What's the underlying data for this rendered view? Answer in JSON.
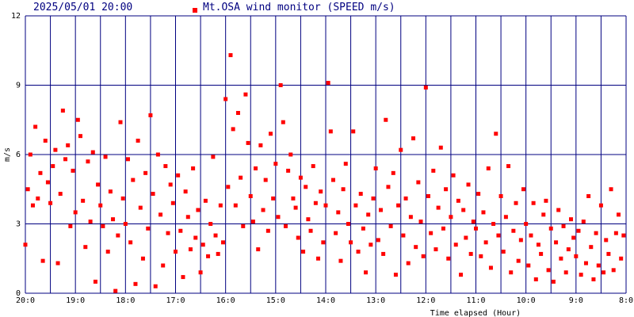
{
  "chart_data": {
    "type": "scatter",
    "title": "2025/05/01 20:00",
    "xlabel": "Time elapsed (Hour)",
    "ylabel": "m/s",
    "xlim": [
      0,
      12
    ],
    "ylim": [
      0,
      12
    ],
    "xticks": [
      {
        "value": 0,
        "label": "20:0"
      },
      {
        "value": 1,
        "label": "19:0"
      },
      {
        "value": 2,
        "label": "18:0"
      },
      {
        "value": 3,
        "label": "17:0"
      },
      {
        "value": 4,
        "label": "16:0"
      },
      {
        "value": 5,
        "label": "15:0"
      },
      {
        "value": 6,
        "label": "14:0"
      },
      {
        "value": 7,
        "label": "13:0"
      },
      {
        "value": 8,
        "label": "12:0"
      },
      {
        "value": 9,
        "label": "11:0"
      },
      {
        "value": 10,
        "label": "10:0"
      },
      {
        "value": 11,
        "label": "9:0"
      },
      {
        "value": 12,
        "label": "8:0"
      }
    ],
    "xminor": [
      0.5,
      1.5,
      2.5,
      3.5,
      4.5,
      5.5,
      6.5,
      7.5,
      8.5,
      9.5,
      10.5,
      11.5
    ],
    "yticks": [
      0,
      3,
      6,
      9,
      12
    ],
    "grid": true,
    "grid_color": "#000080",
    "series": [
      {
        "name": "Mt.OSA wind monitor (SPEED m/s)",
        "color": "#ff0000",
        "x": [
          0,
          0.05,
          0.1,
          0.15,
          0.2,
          0.25,
          0.3,
          0.35,
          0.4,
          0.45,
          0.5,
          0.55,
          0.6,
          0.65,
          0.7,
          0.75,
          0.8,
          0.85,
          0.9,
          0.95,
          1,
          1.05,
          1.1,
          1.15,
          1.2,
          1.25,
          1.3,
          1.35,
          1.4,
          1.45,
          1.5,
          1.55,
          1.6,
          1.65,
          1.7,
          1.75,
          1.8,
          1.85,
          1.9,
          1.95,
          2,
          2.05,
          2.1,
          2.15,
          2.2,
          2.25,
          2.3,
          2.35,
          2.4,
          2.45,
          2.5,
          2.55,
          2.6,
          2.65,
          2.7,
          2.75,
          2.8,
          2.85,
          2.9,
          2.95,
          3,
          3.05,
          3.1,
          3.15,
          3.2,
          3.25,
          3.3,
          3.35,
          3.4,
          3.45,
          3.5,
          3.55,
          3.6,
          3.65,
          3.7,
          3.75,
          3.8,
          3.85,
          3.9,
          3.95,
          4,
          4.05,
          4.1,
          4.15,
          4.2,
          4.25,
          4.3,
          4.35,
          4.4,
          4.45,
          4.5,
          4.55,
          4.6,
          4.65,
          4.7,
          4.75,
          4.8,
          4.85,
          4.9,
          4.95,
          5,
          5.05,
          5.1,
          5.15,
          5.2,
          5.25,
          5.3,
          5.35,
          5.4,
          5.45,
          5.5,
          5.55,
          5.6,
          5.65,
          5.7,
          5.75,
          5.8,
          5.85,
          5.9,
          5.95,
          6,
          6.05,
          6.1,
          6.15,
          6.2,
          6.25,
          6.3,
          6.35,
          6.4,
          6.45,
          6.5,
          6.55,
          6.6,
          6.65,
          6.7,
          6.75,
          6.8,
          6.85,
          6.9,
          6.95,
          7,
          7.05,
          7.1,
          7.15,
          7.2,
          7.25,
          7.3,
          7.35,
          7.4,
          7.45,
          7.5,
          7.55,
          7.6,
          7.65,
          7.7,
          7.75,
          7.8,
          7.85,
          7.9,
          7.95,
          8,
          8.05,
          8.1,
          8.15,
          8.2,
          8.25,
          8.3,
          8.35,
          8.4,
          8.45,
          8.5,
          8.55,
          8.6,
          8.65,
          8.7,
          8.75,
          8.8,
          8.85,
          8.9,
          8.95,
          9,
          9.05,
          9.1,
          9.15,
          9.2,
          9.25,
          9.3,
          9.35,
          9.4,
          9.45,
          9.5,
          9.55,
          9.6,
          9.65,
          9.7,
          9.75,
          9.8,
          9.85,
          9.9,
          9.95,
          10,
          10.05,
          10.1,
          10.15,
          10.2,
          10.25,
          10.3,
          10.35,
          10.4,
          10.45,
          10.5,
          10.55,
          10.6,
          10.65,
          10.7,
          10.75,
          10.8,
          10.85,
          10.9,
          10.95,
          11,
          11.05,
          11.1,
          11.15,
          11.2,
          11.25,
          11.3,
          11.35,
          11.4,
          11.45,
          11.5,
          11.55,
          11.6,
          11.65,
          11.7,
          11.75,
          11.8,
          11.85,
          11.9,
          11.95
        ],
        "values": [
          2.1,
          4.5,
          6.0,
          3.8,
          7.2,
          4.1,
          5.2,
          1.4,
          6.6,
          4.8,
          3.9,
          5.5,
          6.2,
          1.3,
          4.3,
          7.9,
          5.8,
          6.4,
          2.9,
          5.3,
          3.5,
          7.5,
          6.8,
          4.0,
          2.0,
          5.7,
          3.1,
          6.1,
          0.5,
          4.7,
          3.8,
          2.9,
          5.9,
          1.8,
          4.4,
          3.2,
          0.1,
          2.5,
          7.4,
          4.1,
          3.0,
          5.8,
          2.2,
          4.9,
          0.4,
          6.6,
          3.7,
          1.5,
          5.2,
          2.8,
          7.7,
          4.3,
          0.3,
          6.0,
          3.4,
          1.2,
          5.5,
          2.6,
          4.7,
          3.9,
          1.8,
          5.1,
          2.7,
          0.7,
          4.4,
          3.3,
          1.9,
          5.4,
          2.4,
          3.6,
          0.9,
          2.1,
          4.0,
          1.6,
          3.0,
          5.9,
          2.5,
          1.7,
          3.8,
          2.2,
          8.4,
          4.6,
          10.3,
          7.1,
          3.8,
          7.8,
          5.0,
          2.9,
          8.6,
          6.5,
          4.2,
          3.1,
          5.4,
          1.9,
          6.4,
          3.6,
          4.9,
          2.7,
          6.9,
          4.1,
          5.6,
          3.3,
          9.0,
          7.4,
          2.9,
          5.3,
          6.0,
          4.1,
          3.7,
          2.4,
          5.0,
          1.8,
          4.6,
          3.2,
          2.7,
          5.5,
          3.9,
          1.5,
          4.4,
          2.2,
          3.8,
          9.1,
          7.0,
          4.9,
          2.6,
          3.5,
          1.4,
          4.5,
          5.6,
          3.0,
          2.2,
          7.0,
          3.8,
          1.8,
          4.3,
          2.8,
          0.9,
          3.4,
          2.1,
          4.1,
          5.4,
          2.3,
          3.6,
          1.7,
          7.5,
          4.6,
          2.9,
          5.2,
          0.8,
          3.8,
          6.2,
          2.5,
          4.1,
          1.3,
          3.3,
          6.7,
          2.0,
          4.8,
          3.1,
          1.6,
          8.9,
          4.2,
          2.6,
          5.3,
          1.9,
          3.7,
          6.3,
          2.8,
          4.5,
          1.5,
          3.3,
          5.1,
          2.1,
          4.0,
          0.8,
          3.6,
          2.4,
          4.7,
          1.7,
          3.1,
          2.8,
          4.3,
          1.6,
          3.5,
          2.2,
          5.4,
          1.1,
          3.0,
          6.9,
          2.5,
          4.2,
          1.8,
          3.3,
          5.5,
          0.9,
          2.7,
          3.9,
          1.4,
          2.3,
          4.5,
          3.0,
          1.2,
          2.5,
          3.9,
          0.6,
          2.1,
          1.7,
          3.4,
          4.0,
          1.0,
          2.8,
          0.5,
          2.2,
          3.6,
          1.5,
          2.9,
          0.9,
          1.9,
          3.2,
          2.4,
          1.6,
          2.7,
          0.8,
          3.1,
          1.3,
          4.2,
          2.0,
          0.6,
          2.6,
          1.2,
          3.8,
          0.9,
          2.3,
          1.7,
          4.5,
          1.0,
          2.6,
          3.4,
          1.5,
          2.5
        ]
      }
    ]
  }
}
